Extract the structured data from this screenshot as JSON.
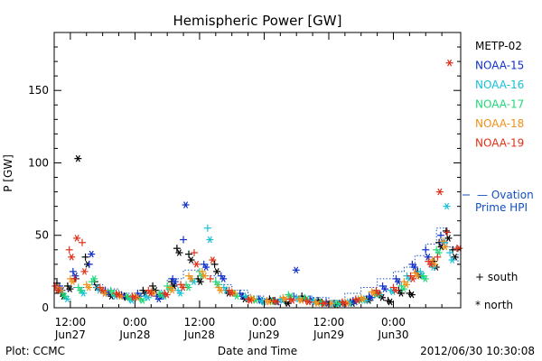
{
  "chart_data": {
    "type": "scatter",
    "title": "Hemispheric Power [GW]",
    "ylabel": "P [GW]",
    "xlabel": "Date and Time",
    "footer_left": "Plot: CCMC",
    "footer_right": "2012/06/30 10:30:08",
    "x_unit": "hours since 2012-06-27 00:00 UT",
    "xlim": [
      9.0,
      84.5
    ],
    "ylim": [
      0,
      190
    ],
    "y_ticks": [
      0,
      50,
      100,
      150
    ],
    "x_ticks": [
      {
        "x": 12,
        "time": "12:00",
        "date": "Jun27"
      },
      {
        "x": 24,
        "time": "0:00",
        "date": "Jun28"
      },
      {
        "x": 36,
        "time": "12:00",
        "date": "Jun28"
      },
      {
        "x": 48,
        "time": "0:00",
        "date": "Jun29"
      },
      {
        "x": 60,
        "time": "12:00",
        "date": "Jun29"
      },
      {
        "x": 72,
        "time": "0:00",
        "date": "Jun30"
      }
    ],
    "legend": {
      "placement": "right",
      "series": [
        {
          "name": "METP-02",
          "color": "#000000"
        },
        {
          "name": "NOAA-15",
          "color": "#1030c8"
        },
        {
          "name": "NOAA-16",
          "color": "#18c0d8"
        },
        {
          "name": "NOAA-17",
          "color": "#20d878"
        },
        {
          "name": "NOAA-18",
          "color": "#f09018"
        },
        {
          "name": "NOAA-19",
          "color": "#e03018"
        }
      ],
      "ovation_label_1": "— Ovation",
      "ovation_label_2": "Prime HPI",
      "ovation_color": "#1050c0",
      "south_label": "+ south",
      "north_label": "* north"
    },
    "ovation_hpi": {
      "style": "dotted-steps",
      "x": [
        9,
        12,
        15,
        18,
        21,
        24,
        27,
        30,
        33,
        36,
        39,
        42,
        45,
        48,
        51,
        54,
        57,
        60,
        63,
        66,
        69,
        72,
        74,
        76,
        78,
        80,
        82,
        84
      ],
      "y": [
        12,
        14,
        16,
        13,
        10,
        8,
        12,
        20,
        26,
        22,
        16,
        12,
        8,
        5,
        6,
        8,
        7,
        5,
        10,
        14,
        20,
        25,
        28,
        36,
        44,
        55,
        42,
        30
      ]
    },
    "series": [
      {
        "name": "METP-02",
        "x": [
          9.5,
          10.3,
          11.5,
          13.0,
          14.8,
          16.5,
          18.0,
          19.2,
          22.0,
          25.5,
          27.3,
          28.6,
          30.8,
          31.8,
          34.0,
          35.7,
          38.8,
          41.0,
          44.0,
          47.5,
          49.0,
          52.0,
          55.0,
          58.0,
          61.0,
          64.0,
          67.0,
          69.5,
          71.0,
          73.0,
          75.0,
          76.5,
          79.5,
          80.5,
          81.8,
          83.0
        ],
        "south": [
          17,
          10,
          15,
          20,
          35,
          18,
          12,
          10,
          8,
          12,
          15,
          9,
          18,
          41,
          37,
          20,
          30,
          12,
          8,
          5,
          6,
          4,
          8,
          5,
          3,
          4,
          6,
          9,
          5,
          12,
          10,
          25,
          32,
          45,
          53,
          40
        ],
        "north": [
          12,
          8,
          13,
          103,
          30,
          14,
          10,
          8,
          7,
          10,
          12,
          8,
          15,
          38,
          33,
          18,
          25,
          10,
          6,
          4,
          5,
          3,
          6,
          4,
          2,
          3,
          5,
          7,
          4,
          10,
          9,
          22,
          28,
          42,
          48,
          35
        ]
      },
      {
        "name": "NOAA-15",
        "x": [
          10.0,
          12.5,
          15.5,
          18.5,
          21.5,
          24.5,
          28.0,
          31.0,
          33.0,
          36.8,
          40.0,
          43.5,
          47.0,
          50.0,
          53.5,
          56.5,
          59.5,
          62.0,
          64.5,
          67.5,
          70.0,
          72.5,
          75.5,
          78.0,
          80.8
        ],
        "south": [
          15,
          25,
          30,
          12,
          9,
          10,
          8,
          20,
          47,
          30,
          22,
          10,
          6,
          5,
          8,
          6,
          4,
          3,
          5,
          8,
          15,
          20,
          30,
          40,
          50
        ],
        "north": [
          12,
          22,
          37,
          10,
          8,
          8,
          6,
          18,
          71,
          28,
          20,
          8,
          5,
          4,
          26,
          5,
          3,
          3,
          4,
          7,
          13,
          18,
          28,
          35,
          45
        ]
      },
      {
        "name": "NOAA-16",
        "x": [
          11.0,
          14.0,
          17.0,
          20.0,
          23.0,
          26.0,
          29.0,
          32.0,
          34.5,
          37.5,
          40.5,
          44.5,
          47.5,
          51.0,
          54.0,
          57.0,
          60.5,
          63.5,
          66.5,
          69.0,
          71.5,
          74.5,
          77.0,
          79.0,
          81.5,
          82.5
        ],
        "south": [
          8,
          12,
          14,
          10,
          6,
          8,
          9,
          12,
          20,
          55,
          14,
          8,
          5,
          6,
          7,
          5,
          3,
          4,
          6,
          10,
          12,
          22,
          25,
          30,
          45,
          38
        ],
        "north": [
          6,
          10,
          12,
          8,
          5,
          7,
          8,
          10,
          18,
          47,
          12,
          7,
          4,
          5,
          6,
          4,
          3,
          3,
          5,
          9,
          11,
          20,
          22,
          28,
          70,
          33
        ]
      },
      {
        "name": "NOAA-17",
        "x": [
          10.5,
          13.5,
          16.0,
          19.5,
          22.5,
          25.0,
          28.5,
          30.0,
          33.5,
          36.0,
          39.0,
          42.5,
          46.0,
          49.5,
          52.5,
          55.5,
          58.5,
          61.5,
          65.5,
          68.5,
          73.5,
          77.5,
          80.0
        ],
        "south": [
          10,
          14,
          18,
          12,
          8,
          6,
          10,
          15,
          16,
          25,
          18,
          10,
          6,
          5,
          9,
          7,
          4,
          3,
          6,
          10,
          15,
          22,
          40
        ],
        "north": [
          8,
          12,
          20,
          10,
          7,
          5,
          9,
          13,
          14,
          22,
          16,
          8,
          5,
          4,
          8,
          6,
          3,
          3,
          5,
          9,
          13,
          20,
          38
        ]
      },
      {
        "name": "NOAA-18",
        "x": [
          9.8,
          12.0,
          15.0,
          18.0,
          21.0,
          24.0,
          27.0,
          30.5,
          34.0,
          36.5,
          39.5,
          42.0,
          45.5,
          48.5,
          51.5,
          54.5,
          57.5,
          60.0,
          63.0,
          66.0,
          68.0,
          74.0,
          76.0,
          79.2,
          81.2
        ],
        "south": [
          14,
          20,
          16,
          12,
          9,
          8,
          11,
          14,
          22,
          25,
          14,
          11,
          7,
          5,
          7,
          6,
          4,
          3,
          4,
          7,
          11,
          18,
          24,
          33,
          46
        ],
        "north": [
          12,
          18,
          14,
          10,
          8,
          7,
          10,
          12,
          20,
          22,
          12,
          10,
          6,
          4,
          6,
          5,
          3,
          3,
          3,
          6,
          10,
          16,
          22,
          30,
          42
        ]
      },
      {
        "name": "NOAA-19",
        "x": [
          9.2,
          11.8,
          12.8,
          14.2,
          17.5,
          20.5,
          23.5,
          26.5,
          29.5,
          32.5,
          35.0,
          38.0,
          41.5,
          45.0,
          49.8,
          52.8,
          55.8,
          58.8,
          62.5,
          65.0,
          68.8,
          72.0,
          75.2,
          78.5,
          80.2,
          82.0,
          83.8
        ],
        "south": [
          15,
          40,
          20,
          45,
          14,
          10,
          8,
          12,
          10,
          16,
          38,
          20,
          12,
          6,
          5,
          6,
          5,
          3,
          4,
          6,
          12,
          14,
          22,
          32,
          35,
          52,
          41
        ],
        "north": [
          12,
          35,
          48,
          25,
          12,
          9,
          7,
          10,
          9,
          14,
          30,
          33,
          10,
          5,
          4,
          5,
          4,
          3,
          3,
          5,
          10,
          12,
          20,
          30,
          80,
          169,
          41
        ]
      }
    ]
  }
}
